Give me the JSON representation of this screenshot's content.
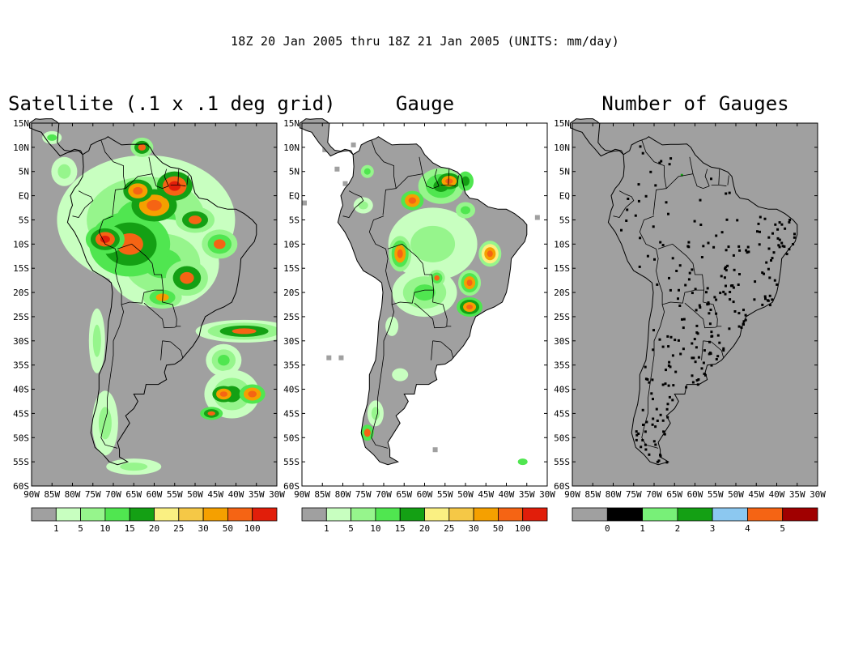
{
  "header": "18Z 20 Jan 2005 thru 18Z 21 Jan 2005 (UNITS: mm/day)",
  "lat_labels": [
    "15N",
    "10N",
    "5N",
    "EQ",
    "5S",
    "10S",
    "15S",
    "20S",
    "25S",
    "30S",
    "35S",
    "40S",
    "45S",
    "50S",
    "55S",
    "60S"
  ],
  "lon_labels": [
    "90W",
    "85W",
    "80W",
    "75W",
    "70W",
    "65W",
    "60W",
    "55W",
    "50W",
    "45W",
    "40W",
    "35W",
    "30W"
  ],
  "colors": {
    "ocean": "#b4b4b4",
    "precip_scale": [
      "#a0a0a0",
      "#c8ffc0",
      "#96f58c",
      "#50e650",
      "#14a014",
      "#faf082",
      "#f5c846",
      "#f5a000",
      "#f56414",
      "#e11e0a"
    ],
    "count_scale": [
      "#a0a0a0",
      "#000000",
      "#78f078",
      "#14a014",
      "#8cc8f0",
      "#f56414",
      "#a00000"
    ]
  },
  "panels": [
    {
      "title": "Satellite (.1 x .1 deg grid)",
      "colorbar_labels": [
        "1",
        "5",
        "10",
        "15",
        "20",
        "25",
        "30",
        "50",
        "100"
      ]
    },
    {
      "title": "Gauge",
      "colorbar_labels": [
        "1",
        "5",
        "10",
        "15",
        "20",
        "25",
        "30",
        "50",
        "100"
      ]
    },
    {
      "title": "Number of Gauges",
      "colorbar_labels": [
        "0",
        "1",
        "2",
        "3",
        "4",
        "5"
      ]
    }
  ]
}
